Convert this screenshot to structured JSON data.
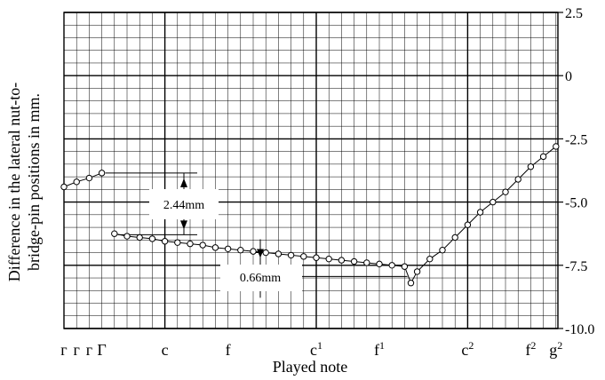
{
  "chart_data": {
    "type": "line",
    "title": "",
    "xlabel": "Played note",
    "ylabel_line1": "Difference in the lateral nut-to-",
    "ylabel_line2": "bridge-pin positions in mm.",
    "ylim": [
      -10.0,
      2.5
    ],
    "xlim": [
      0,
      40
    ],
    "yticks": [
      {
        "value": 2.5,
        "label": "2.5"
      },
      {
        "value": 0,
        "label": "0"
      },
      {
        "value": -2.5,
        "label": "-2.5"
      },
      {
        "value": -5.0,
        "label": "-5.0"
      },
      {
        "value": -7.5,
        "label": "-7.5"
      },
      {
        "value": -10.0,
        "label": "-10.0"
      }
    ],
    "xticks": [
      {
        "x": 0,
        "label": "ᴦ",
        "sup": ""
      },
      {
        "x": 1,
        "label": "ᴦ",
        "sup": ""
      },
      {
        "x": 2,
        "label": "ᴦ",
        "sup": ""
      },
      {
        "x": 3,
        "label": "Γ",
        "sup": ""
      },
      {
        "x": 8,
        "label": "c",
        "sup": ""
      },
      {
        "x": 13,
        "label": "f",
        "sup": ""
      },
      {
        "x": 20,
        "label": "c",
        "sup": "1"
      },
      {
        "x": 25,
        "label": "f",
        "sup": "1"
      },
      {
        "x": 32,
        "label": "c",
        "sup": "2"
      },
      {
        "x": 37,
        "label": "f",
        "sup": "2"
      },
      {
        "x": 39,
        "label": "g",
        "sup": "2"
      }
    ],
    "series": [
      {
        "x": [
          0,
          1,
          2,
          3
        ],
        "y": [
          -4.4,
          -4.2,
          -4.05,
          -3.85
        ]
      },
      {
        "x": [
          4,
          5,
          6,
          7,
          8,
          9,
          10,
          11,
          12,
          13,
          14,
          15,
          16,
          17,
          18,
          19,
          20,
          21,
          22,
          23,
          24,
          25,
          26,
          27,
          27.5,
          28,
          29,
          30,
          31,
          32,
          33,
          34,
          35,
          36,
          37,
          38,
          39
        ],
        "y": [
          -6.25,
          -6.35,
          -6.4,
          -6.45,
          -6.55,
          -6.6,
          -6.65,
          -6.7,
          -6.8,
          -6.85,
          -6.9,
          -6.95,
          -7.0,
          -7.05,
          -7.1,
          -7.15,
          -7.2,
          -7.25,
          -7.3,
          -7.35,
          -7.4,
          -7.45,
          -7.5,
          -7.55,
          -8.2,
          -7.75,
          -7.25,
          -6.9,
          -6.4,
          -5.9,
          -5.4,
          -5.0,
          -4.6,
          -4.1,
          -3.6,
          -3.2,
          -2.8
        ]
      }
    ],
    "annotations": [
      {
        "text": "2.44mm",
        "x1": 3,
        "x2": 4,
        "y_top": -3.85,
        "y_bottom": -6.29
      },
      {
        "text": "0.66mm",
        "x1": 16,
        "x2": 27.5,
        "y_top": -7.0,
        "y_bottom": -7.66
      }
    ],
    "grid": true
  }
}
